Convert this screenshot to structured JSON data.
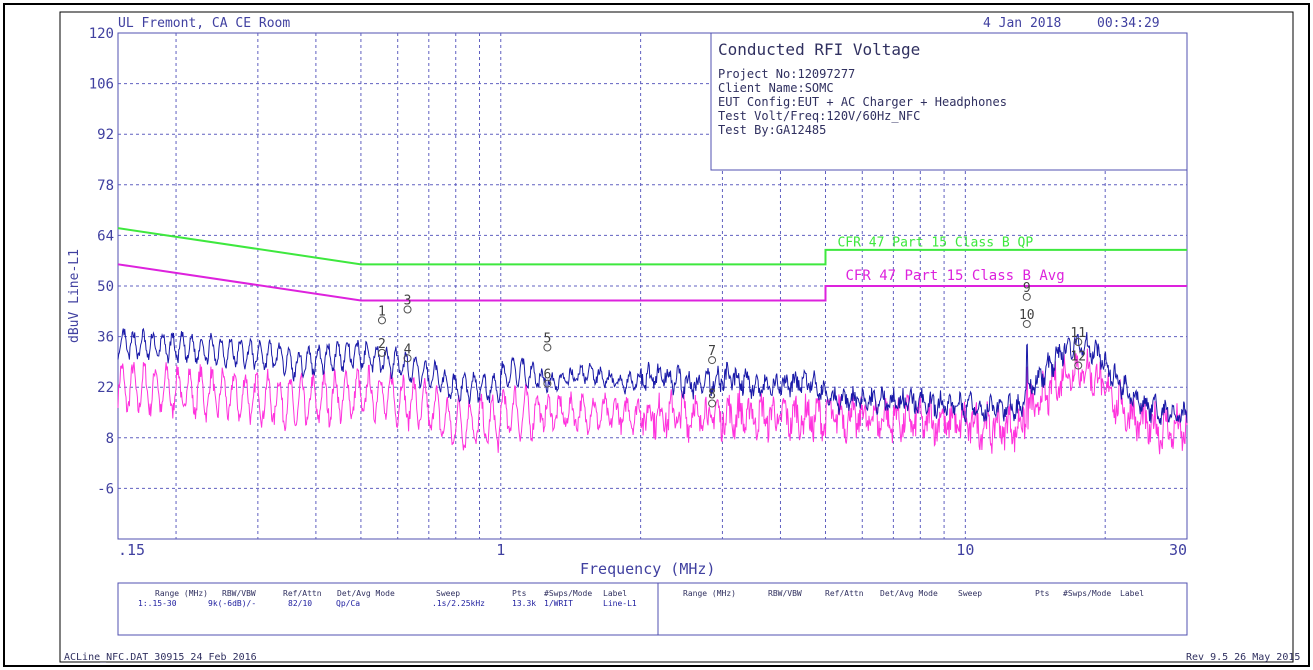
{
  "header": {
    "lab": "UL Fremont, CA CE Room",
    "date": "4 Jan 2018",
    "time": "00:34:29"
  },
  "infobox": {
    "title": "Conducted RFI Voltage",
    "lines": [
      "Project No:12097277",
      "Client Name:SOMC",
      "EUT Config:EUT + AC Charger + Headphones",
      "Test Volt/Freq:120V/60Hz_NFC",
      "Test By:GA12485"
    ]
  },
  "footer": {
    "left": "ACLine_NFC.DAT 30915 24 Feb 2016",
    "right": "Rev 9.5 26 May 2015"
  },
  "settings_table": {
    "headers": [
      "Range (MHz)",
      "RBW/VBW",
      "Ref/Attn",
      "Det/Avg Mode",
      "Sweep",
      "Pts",
      "#Swps/Mode",
      "Label"
    ],
    "row": [
      "1:.15-30",
      "9k(-6dB)/-",
      "82/10",
      "Qp/Ca",
      ".1s/2.25kHz",
      "13.3k",
      "1/WRIT",
      "Line-L1"
    ]
  },
  "chart_data": {
    "type": "line",
    "title": "",
    "xlabel": "Frequency (MHz)",
    "ylabel": "dBuV Line-L1",
    "xscale": "log",
    "xlim": [
      0.15,
      30
    ],
    "ylim": [
      -20,
      120
    ],
    "yticks": [
      120,
      106,
      92,
      78,
      64,
      50,
      36,
      22,
      8,
      -6
    ],
    "xtick_labels": [
      {
        "value": 0.15,
        "label": ".15"
      },
      {
        "value": 1,
        "label": "1"
      },
      {
        "value": 10,
        "label": "10"
      },
      {
        "value": 30,
        "label": "30"
      }
    ],
    "grid": true,
    "limits": [
      {
        "name": "CFR 47 Part 15 Class B QP",
        "color": "#3ee83e",
        "points": [
          [
            0.15,
            66
          ],
          [
            0.5,
            56
          ],
          [
            5,
            56
          ],
          [
            5,
            60
          ],
          [
            30,
            60
          ]
        ]
      },
      {
        "name": "CFR 47 Part 15 Class B Avg",
        "color": "#dd22dd",
        "points": [
          [
            0.15,
            56
          ],
          [
            0.5,
            46
          ],
          [
            5,
            46
          ],
          [
            5,
            50
          ],
          [
            30,
            50
          ]
        ]
      }
    ],
    "series": [
      {
        "color": "#1a1aa8",
        "label_position": "qp"
      },
      {
        "color": "#ff33dd",
        "label_position": "avg"
      }
    ],
    "markers": [
      {
        "label": "1",
        "freq": 0.555,
        "value": 40.5
      },
      {
        "label": "2",
        "freq": 0.555,
        "value": 31.5
      },
      {
        "label": "3",
        "freq": 0.63,
        "value": 43.5
      },
      {
        "label": "4",
        "freq": 0.63,
        "value": 30.0
      },
      {
        "label": "5",
        "freq": 1.26,
        "value": 33.0
      },
      {
        "label": "6",
        "freq": 1.26,
        "value": 23.0
      },
      {
        "label": "7",
        "freq": 2.85,
        "value": 29.5
      },
      {
        "label": "8",
        "freq": 2.85,
        "value": 17.5
      },
      {
        "label": "9",
        "freq": 13.56,
        "value": 47.0
      },
      {
        "label": "10",
        "freq": 13.56,
        "value": 39.5
      },
      {
        "label": "11",
        "freq": 17.5,
        "value": 34.5
      },
      {
        "label": "12",
        "freq": 17.5,
        "value": 28.0
      }
    ]
  }
}
